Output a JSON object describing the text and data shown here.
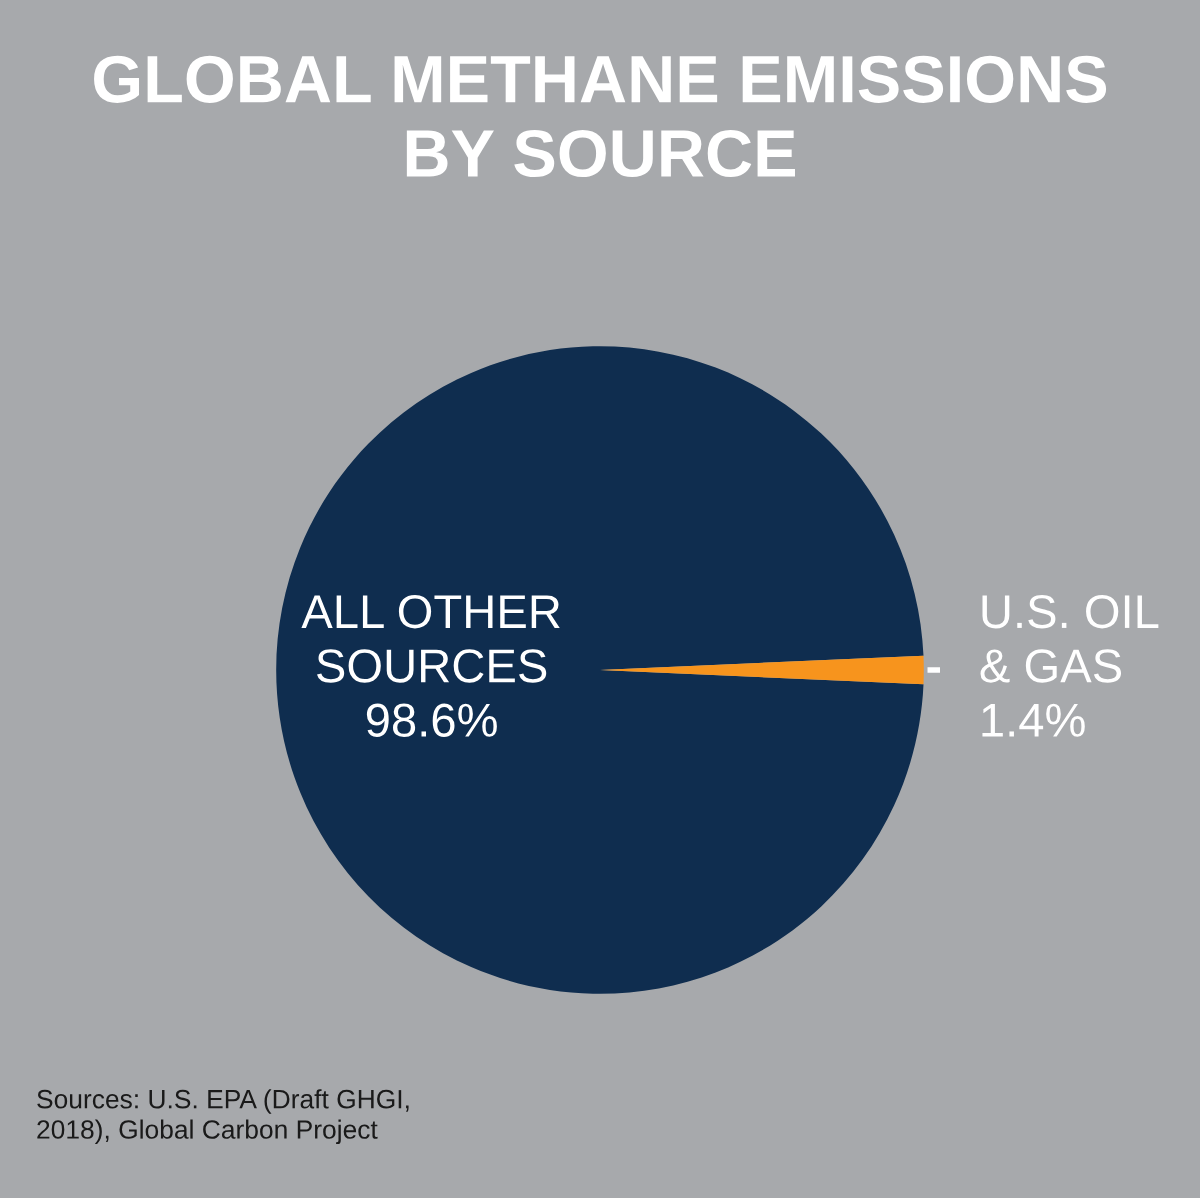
{
  "chart_data": {
    "type": "pie",
    "title": "GLOBAL METHANE EMISSIONS\nBY SOURCE",
    "categories": [
      "ALL OTHER\nSOURCES",
      "U.S. OIL\n& GAS"
    ],
    "values": [
      98.6,
      1.4
    ],
    "colors": [
      "#0f2d4f",
      "#f7941d"
    ],
    "value_labels": [
      "98.6%",
      "1.4%"
    ],
    "annotations": [
      "Sources: U.S. EPA (Draft GHGI,\n2018), Global Carbon Project"
    ]
  }
}
